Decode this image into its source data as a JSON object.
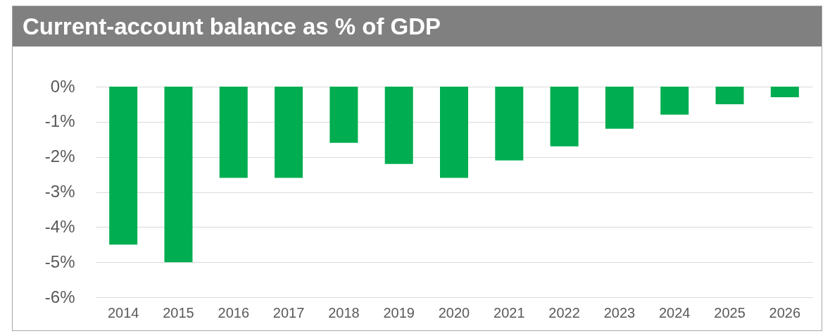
{
  "chart_data": {
    "type": "bar",
    "title": "Current-account balance as % of GDP",
    "categories": [
      "2014",
      "2015",
      "2016",
      "2017",
      "2018",
      "2019",
      "2020",
      "2021",
      "2022",
      "2023",
      "2024",
      "2025",
      "2026"
    ],
    "values": [
      -4.5,
      -5.0,
      -2.6,
      -2.6,
      -1.6,
      -2.2,
      -2.6,
      -2.1,
      -1.7,
      -1.2,
      -0.8,
      -0.5,
      -0.3
    ],
    "color": "#00ad50",
    "ylim": [
      -6,
      0
    ],
    "yticks": [
      {
        "value": 0,
        "label": "0%"
      },
      {
        "value": -1,
        "label": "-1%"
      },
      {
        "value": -2,
        "label": "-2%"
      },
      {
        "value": -3,
        "label": "-3%"
      },
      {
        "value": -4,
        "label": "-4%"
      },
      {
        "value": -5,
        "label": "-5%"
      },
      {
        "value": -6,
        "label": "-6%"
      }
    ],
    "grid": "y"
  }
}
